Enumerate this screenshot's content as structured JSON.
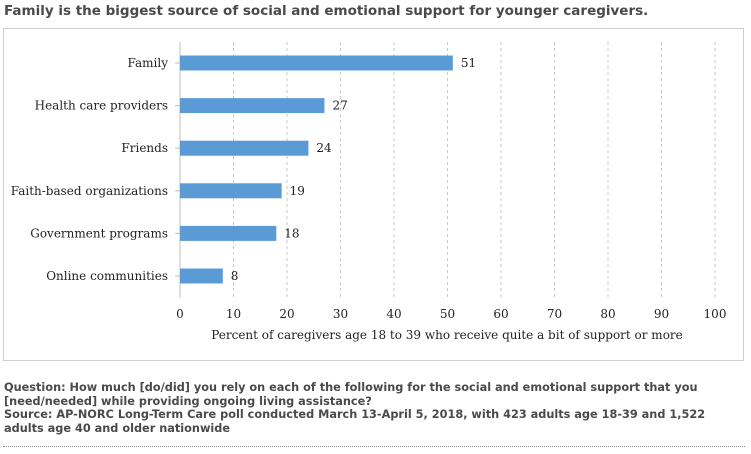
{
  "page": {
    "title": "Family is the biggest source of social and emotional support for younger caregivers.",
    "question": "Question: How much [do/did] you rely on each of the following for the social and emotional support that you [need/needed] while providing ongoing living assistance?",
    "source": "Source: AP-NORC Long-Term Care poll conducted March 13-April 5, 2018, with 423 adults age 18-39 and 1,522 adults age 40 and older nationwide"
  },
  "chart_data": {
    "type": "bar",
    "orientation": "horizontal",
    "categories": [
      "Family",
      "Health care providers",
      "Friends",
      "Faith-based organizations",
      "Government programs",
      "Online communities"
    ],
    "values": [
      51,
      27,
      24,
      19,
      18,
      8
    ],
    "data_labels": [
      "51",
      "27",
      "24",
      "19",
      "18",
      "8"
    ],
    "xlabel": "Percent of caregivers age 18 to 39 who receive quite a bit of support or more",
    "xlim": [
      0,
      100
    ],
    "x_ticks": [
      0,
      10,
      20,
      30,
      40,
      50,
      60,
      70,
      80,
      90,
      100
    ],
    "x_tick_labels": [
      "0",
      "10",
      "20",
      "30",
      "40",
      "50",
      "60",
      "70",
      "80",
      "90",
      "100"
    ],
    "grid": "vertical-dashed",
    "legend": "none",
    "bar_color": "#5b9bd5"
  }
}
